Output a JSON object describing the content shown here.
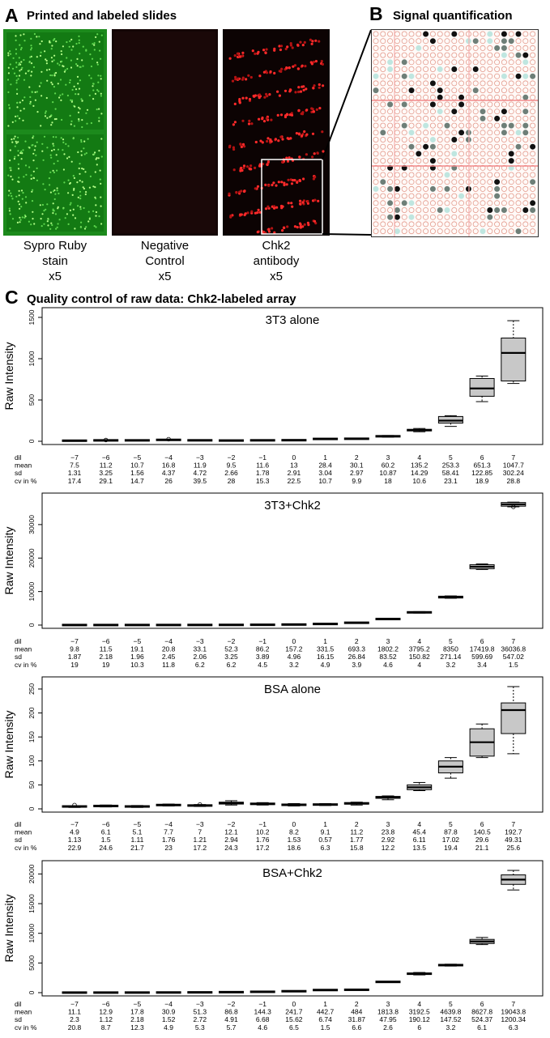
{
  "panel_a": {
    "letter": "A",
    "title": "Printed and labeled slides"
  },
  "panel_b": {
    "letter": "B",
    "title": "Signal quantification"
  },
  "slides": [
    {
      "caption_lines": [
        "Sypro Ruby",
        "stain",
        "x5"
      ],
      "color": "#2fb52f"
    },
    {
      "caption_lines": [
        "Negative",
        "Control",
        "x5"
      ],
      "color": "#1a0a0a"
    },
    {
      "caption_lines": [
        "Chk2",
        "antibody",
        "x5"
      ],
      "color": "#e01818"
    }
  ],
  "panel_c": {
    "letter": "C",
    "title": "Quality control of raw data: Chk2-labeled array"
  },
  "row_labels": [
    "dil",
    "mean",
    "sd",
    "cv in %"
  ],
  "chart_data": [
    {
      "type": "box",
      "title": "3T3 alone",
      "ylabel": "Raw Intensity",
      "categories": [
        "−7",
        "−6",
        "−5",
        "−4",
        "−3",
        "−2",
        "−1",
        "0",
        "1",
        "2",
        "3",
        "4",
        "5",
        "6",
        "7"
      ],
      "ylim": [
        0,
        1500
      ],
      "yticks": [
        0,
        500,
        1000,
        1500
      ],
      "ytick_labels": [
        "0",
        "500",
        "1000",
        "1500"
      ],
      "medians": [
        7,
        10,
        11,
        17,
        11,
        9,
        11,
        13,
        28,
        30,
        60,
        135,
        250,
        640,
        1070
      ],
      "q1": [
        5,
        9,
        10,
        15,
        9,
        7,
        10,
        12,
        27,
        29,
        55,
        125,
        220,
        545,
        730
      ],
      "q3": [
        9,
        13,
        12,
        19,
        14,
        11,
        13,
        14,
        30,
        32,
        66,
        145,
        300,
        760,
        1250
      ],
      "whisker_low": [
        4,
        8,
        9,
        14,
        8,
        6,
        9,
        11,
        26,
        28,
        50,
        115,
        180,
        480,
        700
      ],
      "whisker_high": [
        10,
        14,
        13,
        20,
        15,
        12,
        14,
        15,
        31,
        33,
        70,
        155,
        310,
        790,
        1460
      ],
      "outliers": [
        [],
        [
          15
        ],
        [],
        [
          25
        ],
        [],
        [],
        [],
        [],
        [],
        [],
        [],
        [],
        [],
        [],
        []
      ],
      "mean": [
        "7.5",
        "11.2",
        "10.7",
        "16.8",
        "11.9",
        "9.5",
        "11.6",
        "13",
        "28.4",
        "30.1",
        "60.2",
        "135.2",
        "253.3",
        "651.3",
        "1047.7"
      ],
      "sd": [
        "1.31",
        "3.25",
        "1.56",
        "4.37",
        "4.72",
        "2.66",
        "1.78",
        "2.91",
        "3.04",
        "2.97",
        "10.87",
        "14.29",
        "58.41",
        "122.85",
        "302.24"
      ],
      "cv": [
        "17.4",
        "29.1",
        "14.7",
        "26",
        "39.5",
        "28",
        "15.3",
        "22.5",
        "10.7",
        "9.9",
        "18",
        "10.6",
        "23.1",
        "18.9",
        "28.8"
      ]
    },
    {
      "type": "box",
      "title": "3T3+Chk2",
      "ylabel": "Raw Intensity",
      "categories": [
        "−7",
        "−6",
        "−5",
        "−4",
        "−3",
        "−2",
        "−1",
        "0",
        "1",
        "2",
        "3",
        "4",
        "5",
        "6",
        "7"
      ],
      "ylim": [
        0,
        36500
      ],
      "yticks": [
        0,
        10000,
        20000,
        30000
      ],
      "ytick_labels": [
        "0",
        "10000",
        "20000",
        "30000"
      ],
      "medians": [
        10,
        11,
        19,
        21,
        33,
        52,
        86,
        157,
        331,
        693,
        1802,
        3795,
        8350,
        17420,
        36037
      ],
      "q1": [
        8,
        10,
        17,
        19,
        31,
        49,
        82,
        152,
        316,
        666,
        1718,
        3644,
        8078,
        16820,
        35490
      ],
      "q3": [
        11,
        13,
        21,
        23,
        35,
        55,
        90,
        162,
        347,
        720,
        1886,
        3946,
        8621,
        18020,
        36584
      ],
      "whisker_low": [
        7,
        9,
        16,
        18,
        30,
        47,
        80,
        150,
        310,
        650,
        1680,
        3580,
        8000,
        16600,
        35300
      ],
      "whisker_high": [
        12,
        14,
        22,
        24,
        36,
        57,
        92,
        165,
        355,
        735,
        1920,
        4010,
        8700,
        18250,
        36700
      ],
      "outliers": [
        [],
        [],
        [],
        [],
        [],
        [],
        [],
        [],
        [],
        [],
        [],
        [],
        [],
        [],
        [
          35300
        ]
      ],
      "mean": [
        "9.8",
        "11.5",
        "19.1",
        "20.8",
        "33.1",
        "52.3",
        "86.2",
        "157.2",
        "331.5",
        "693.3",
        "1802.2",
        "3795.2",
        "8350",
        "17419.8",
        "36036.8"
      ],
      "sd": [
        "1.87",
        "2.18",
        "1.96",
        "2.45",
        "2.06",
        "3.25",
        "3.89",
        "4.96",
        "16.15",
        "26.84",
        "83.52",
        "150.82",
        "271.14",
        "599.69",
        "547.02"
      ],
      "cv": [
        "19",
        "19",
        "10.3",
        "11.8",
        "6.2",
        "6.2",
        "4.5",
        "3.2",
        "4.9",
        "3.9",
        "4.6",
        "4",
        "3.2",
        "3.4",
        "1.5"
      ]
    },
    {
      "type": "box",
      "title": "BSA alone",
      "ylabel": "Raw Intensity",
      "categories": [
        "−7",
        "−6",
        "−5",
        "−4",
        "−3",
        "−2",
        "−1",
        "0",
        "1",
        "2",
        "3",
        "4",
        "5",
        "6",
        "7"
      ],
      "ylim": [
        0,
        255
      ],
      "yticks": [
        0,
        50,
        100,
        150,
        200,
        250
      ],
      "ytick_labels": [
        "0",
        "50",
        "100",
        "150",
        "200",
        "250"
      ],
      "medians": [
        5,
        6,
        5,
        8,
        7,
        12,
        10,
        8,
        9,
        11,
        24,
        45,
        88,
        139,
        206
      ],
      "q1": [
        4,
        5,
        4,
        7,
        6,
        10,
        9,
        7,
        8,
        10,
        22,
        40,
        75,
        110,
        157
      ],
      "q3": [
        6,
        7,
        6,
        9,
        8,
        14,
        12,
        10,
        10,
        13,
        26,
        50,
        100,
        167,
        221
      ],
      "whisker_low": [
        3,
        4,
        3,
        6,
        5,
        8,
        8,
        6,
        7,
        8,
        19,
        38,
        64,
        107,
        115
      ],
      "whisker_high": [
        6,
        8,
        7,
        10,
        9,
        17,
        13,
        11,
        11,
        14,
        27,
        55,
        107,
        177,
        255
      ],
      "outliers": [
        [
          8
        ],
        [],
        [],
        [],
        [
          9
        ],
        [],
        [],
        [],
        [],
        [],
        [],
        [],
        [],
        [],
        []
      ],
      "mean": [
        "4.9",
        "6.1",
        "5.1",
        "7.7",
        "7",
        "12.1",
        "10.2",
        "8.2",
        "9.1",
        "11.2",
        "23.8",
        "45.4",
        "87.8",
        "140.5",
        "192.7"
      ],
      "sd": [
        "1.13",
        "1.5",
        "1.11",
        "1.76",
        "1.21",
        "2.94",
        "1.76",
        "1.53",
        "0.57",
        "1.77",
        "2.92",
        "6.11",
        "17.02",
        "29.6",
        "49.31"
      ],
      "cv": [
        "22.9",
        "24.6",
        "21.7",
        "23",
        "17.2",
        "24.3",
        "17.2",
        "18.6",
        "6.3",
        "15.8",
        "12.2",
        "13.5",
        "19.4",
        "21.1",
        "25.6"
      ]
    },
    {
      "type": "box",
      "title": "BSA+Chk2",
      "ylabel": "Raw Intensity",
      "categories": [
        "−7",
        "−6",
        "−5",
        "−4",
        "−3",
        "−2",
        "−1",
        "0",
        "1",
        "2",
        "3",
        "4",
        "5",
        "6",
        "7"
      ],
      "ylim": [
        0,
        20600
      ],
      "yticks": [
        0,
        5000,
        10000,
        15000,
        20000
      ],
      "ytick_labels": [
        "0",
        "5000",
        "10000",
        "15000",
        "20000"
      ],
      "medians": [
        11,
        13,
        18,
        31,
        51,
        87,
        144,
        242,
        443,
        484,
        1814,
        3192,
        4640,
        8628,
        19044
      ],
      "q1": [
        9,
        12,
        16,
        29,
        49,
        84,
        140,
        232,
        438,
        464,
        1784,
        3066,
        4542,
        8280,
        18245
      ],
      "q3": [
        13,
        14,
        19,
        32,
        53,
        90,
        149,
        252,
        447,
        504,
        1844,
        3318,
        4738,
        8976,
        19844
      ],
      "whisker_low": [
        8,
        11,
        15,
        28,
        47,
        82,
        137,
        228,
        434,
        455,
        1770,
        2990,
        4480,
        8100,
        17300
      ],
      "whisker_high": [
        14,
        15,
        20,
        33,
        55,
        92,
        151,
        256,
        451,
        512,
        1858,
        3400,
        4800,
        9300,
        20600
      ],
      "outliers": [
        [],
        [],
        [],
        [],
        [],
        [],
        [],
        [],
        [],
        [],
        [],
        [],
        [],
        [],
        []
      ],
      "mean": [
        "11.1",
        "12.9",
        "17.8",
        "30.9",
        "51.3",
        "86.8",
        "144.3",
        "241.7",
        "442.7",
        "484",
        "1813.8",
        "3192.5",
        "4639.8",
        "8627.8",
        "19043.8"
      ],
      "sd": [
        "2.3",
        "1.12",
        "2.18",
        "1.52",
        "2.72",
        "4.91",
        "6.68",
        "15.62",
        "6.74",
        "31.87",
        "47.95",
        "190.12",
        "147.52",
        "524.37",
        "1200.34"
      ],
      "cv": [
        "20.8",
        "8.7",
        "12.3",
        "4.9",
        "5.3",
        "5.7",
        "4.6",
        "6.5",
        "1.5",
        "6.6",
        "2.6",
        "6",
        "3.2",
        "6.1",
        "6.3"
      ]
    }
  ]
}
